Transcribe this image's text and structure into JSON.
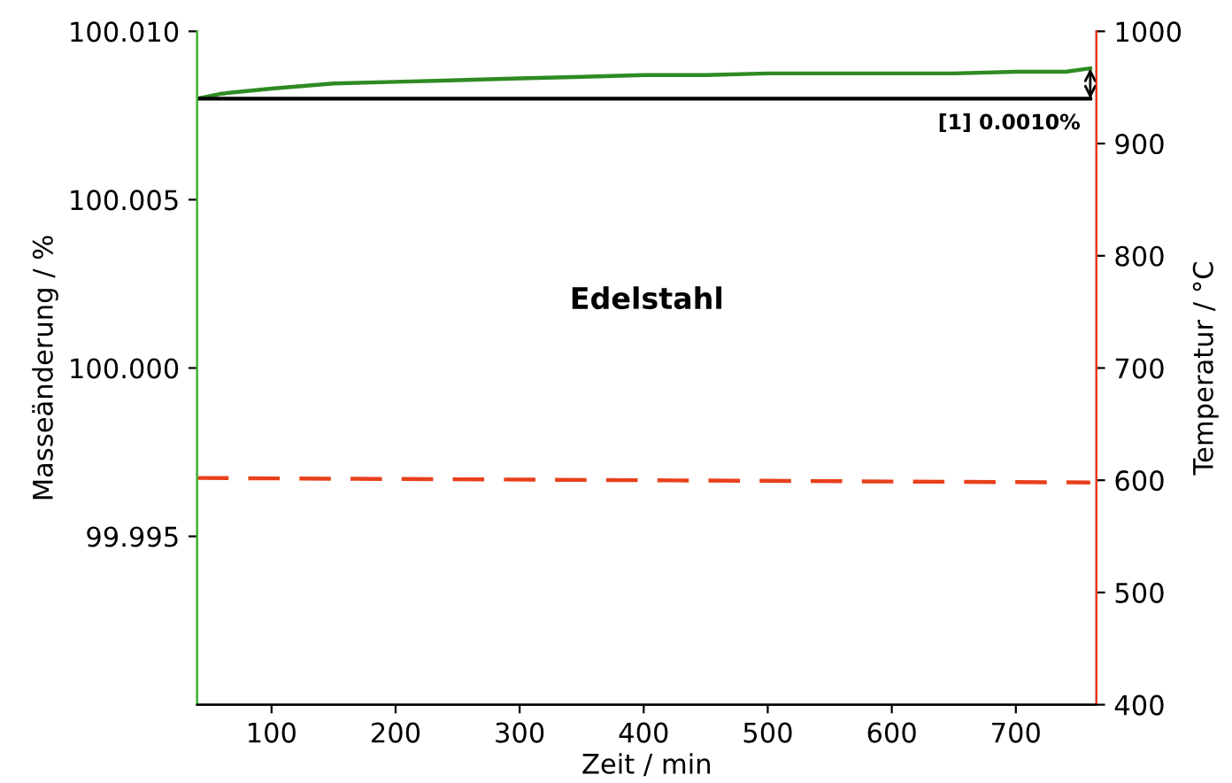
{
  "chart_data": {
    "type": "line",
    "xlabel": "Zeit / min",
    "ylabel": "Masseänderung / %",
    "y2label": "Temperatur / °C",
    "xlim": [
      40,
      765
    ],
    "xticks": [
      100,
      200,
      300,
      400,
      500,
      600,
      700
    ],
    "ylim": [
      99.99,
      100.01
    ],
    "yticks": [
      99.995,
      {
        "value": 100.0,
        "label": "100.000"
      },
      100.005,
      {
        "value": 100.01,
        "label": "100.010"
      }
    ],
    "y2lim": [
      400,
      1000
    ],
    "y2ticks": [
      400,
      500,
      600,
      700,
      800,
      900,
      1000
    ],
    "grid": false,
    "legend": false,
    "series": [
      {
        "color": "#2e8b22",
        "line_style": "solid",
        "x": [
          40,
          60,
          100,
          150,
          200,
          250,
          300,
          350,
          400,
          450,
          500,
          550,
          600,
          650,
          700,
          740,
          760
        ],
        "values": [
          100.008,
          100.00815,
          100.0083,
          100.00845,
          100.0085,
          100.00855,
          100.0086,
          100.00865,
          100.0087,
          100.0087,
          100.00875,
          100.00875,
          100.00875,
          100.00875,
          100.0088,
          100.0088,
          100.0089
        ]
      },
      {
        "color": "#e8401c",
        "line_style": "dashed",
        "axis": "y2",
        "x": [
          40,
          760
        ],
        "values": [
          602,
          598
        ]
      }
    ],
    "ref_lines": [
      {
        "axis": "y",
        "value": 100.008,
        "color": "#000000",
        "line_style": "solid"
      }
    ],
    "annotations": [
      {
        "text": "[1] 0.0010%",
        "x": 760,
        "y": 100.008
      },
      "Edelstahl"
    ]
  }
}
